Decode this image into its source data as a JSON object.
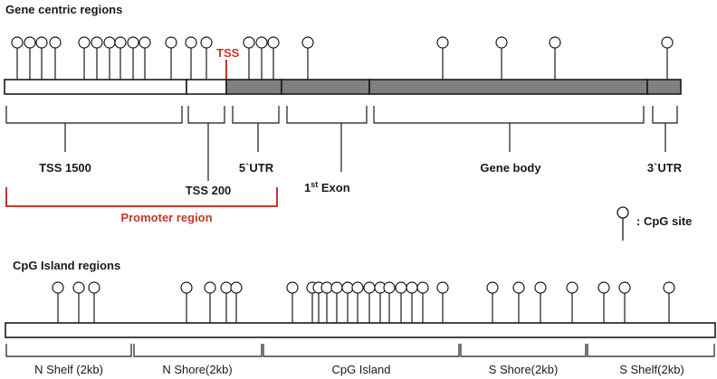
{
  "gene_section": {
    "title": "Gene centric regions",
    "tss_marker": "TSS",
    "segments": {
      "tss1500": "TSS 1500",
      "tss200": "TSS 200",
      "utr5": "5`UTR",
      "exon_base": "1",
      "exon_sup": "st",
      "exon_rest": " Exon",
      "gene_body": "Gene body",
      "utr3": "3`UTR"
    },
    "promoter_label": "Promoter region"
  },
  "legend": {
    "label": ": CpG site"
  },
  "cpg_section": {
    "title": "CpG Island regions",
    "regions": [
      "N Shelf (2kb)",
      "N Shore(2kb)",
      "CpG Island",
      "S Shore(2kb)",
      "S Shelf(2kb)"
    ]
  },
  "colors": {
    "accent_red": "#c0392b",
    "gene_bar_dark": "#808080",
    "line": "#1a1a1a"
  }
}
